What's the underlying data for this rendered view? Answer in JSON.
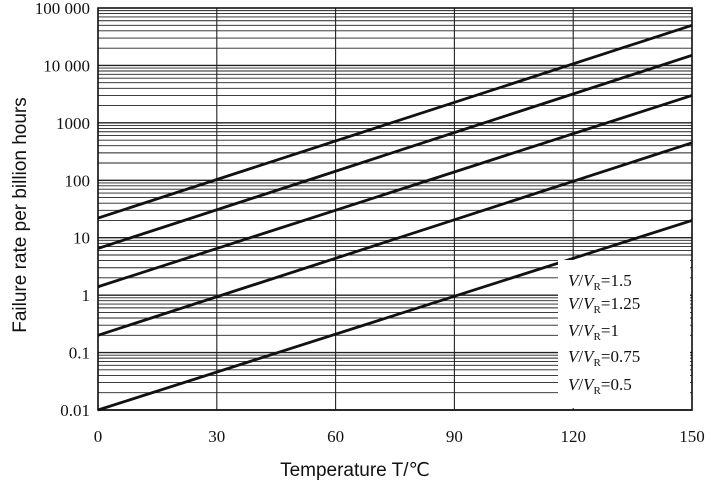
{
  "chart_data": {
    "type": "line",
    "title": "",
    "xlabel": "Temperature T/℃",
    "ylabel": "Failure rate per billion hours",
    "x_ticks": [
      "0",
      "30",
      "60",
      "90",
      "120",
      "150"
    ],
    "y_ticks": [
      "0.01",
      "0.1",
      "1",
      "10",
      "100",
      "1000",
      "10 000",
      "100 000"
    ],
    "xlim": [
      0,
      150
    ],
    "ylim": [
      0.01,
      100000
    ],
    "y_scale": "log",
    "grid": true,
    "legend_position": "bottom-right",
    "series": [
      {
        "name": "V/VR=1.5",
        "x": [
          0,
          150
        ],
        "y": [
          22,
          50000
        ]
      },
      {
        "name": "V/VR=1.25",
        "x": [
          0,
          150
        ],
        "y": [
          6.5,
          15000
        ]
      },
      {
        "name": "V/VR=1",
        "x": [
          0,
          150
        ],
        "y": [
          1.4,
          3000
        ]
      },
      {
        "name": "V/VR=0.75",
        "x": [
          0,
          150
        ],
        "y": [
          0.2,
          450
        ]
      },
      {
        "name": "V/VR=0.5",
        "x": [
          0,
          150
        ],
        "y": [
          0.01,
          20
        ]
      }
    ],
    "legend": [
      {
        "var": "V",
        "sub": "R",
        "value": "1.5"
      },
      {
        "var": "V",
        "sub": "R",
        "value": "1.25"
      },
      {
        "var": "V",
        "sub": "R",
        "value": "1"
      },
      {
        "var": "V",
        "sub": "R",
        "value": "0.75"
      },
      {
        "var": "V",
        "sub": "R",
        "value": "0.5"
      }
    ],
    "colors": {
      "line": "#111111",
      "grid": "#222222",
      "background": "#ffffff"
    }
  }
}
